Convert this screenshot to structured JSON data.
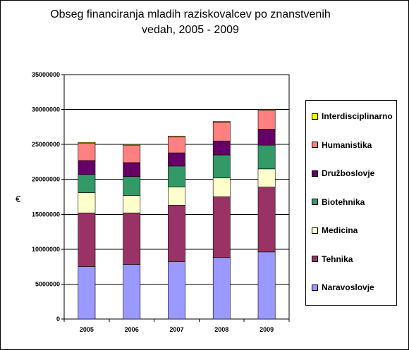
{
  "chart_data": {
    "type": "bar",
    "stacked": true,
    "title": "Obseg financiranja mladih raziskovalcev po znanstvenih vedah, 2005 - 2009",
    "title_lines": [
      "Obseg financiranja mladih raziskovalcev po znanstvenih",
      "vedah, 2005 - 2009"
    ],
    "xlabel": "",
    "ylabel": "€",
    "ylim": [
      0,
      35000000
    ],
    "yticks": [
      0,
      5000000,
      10000000,
      15000000,
      20000000,
      25000000,
      30000000,
      35000000
    ],
    "ytick_labels": [
      "0",
      "5000000",
      "10000000",
      "15000000",
      "20000000",
      "25000000",
      "30000000",
      "35000000"
    ],
    "grid": true,
    "legend_position": "right",
    "categories": [
      "2005",
      "2006",
      "2007",
      "2008",
      "2009"
    ],
    "series": [
      {
        "name": "Naravoslovje",
        "color": "#9999ff",
        "values": [
          7500000,
          7800000,
          8200000,
          8800000,
          9600000
        ]
      },
      {
        "name": "Tehnika",
        "color": "#993366",
        "values": [
          7700000,
          7400000,
          8100000,
          8700000,
          9300000
        ]
      },
      {
        "name": "Medicina",
        "color": "#ffffcc",
        "values": [
          2900000,
          2500000,
          2600000,
          2700000,
          2600000
        ]
      },
      {
        "name": "Biotehnika",
        "color": "#339966",
        "values": [
          2600000,
          2700000,
          3000000,
          3300000,
          3400000
        ]
      },
      {
        "name": "Družboslovje",
        "color": "#660066",
        "values": [
          2000000,
          2000000,
          1900000,
          2000000,
          2300000
        ]
      },
      {
        "name": "Humanistika",
        "color": "#ff8080",
        "values": [
          2500000,
          2500000,
          2300000,
          2700000,
          2700000
        ]
      },
      {
        "name": "Interdisciplinarno",
        "color": "#ffff00",
        "values": [
          100000,
          100000,
          100000,
          100000,
          100000
        ]
      }
    ],
    "plot_background": "#ffffff"
  }
}
